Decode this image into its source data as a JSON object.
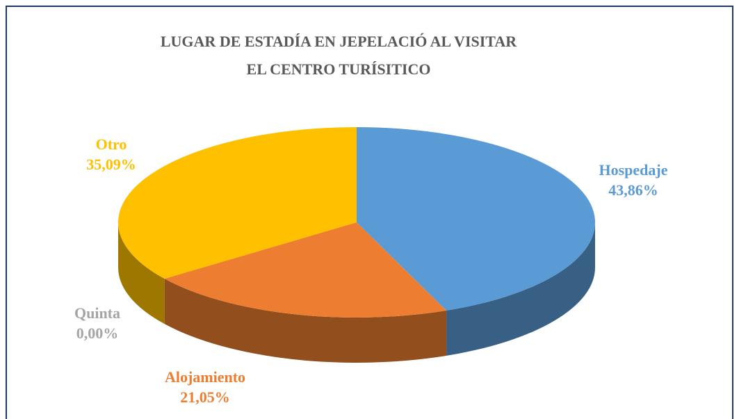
{
  "chart_data": {
    "type": "pie",
    "title": "LUGAR DE ESTADÍA EN JEPELACIÓ AL VISITAR EL CENTRO TURÍSITICO",
    "categories": [
      "Hospedaje",
      "Alojamiento",
      "Quinta",
      "Otro"
    ],
    "values": [
      43.86,
      21.05,
      0.0,
      35.09
    ],
    "value_labels": [
      "43,86%",
      "21,05%",
      "0,00%",
      "35,09%"
    ],
    "colors": [
      "#5b9bd5",
      "#ed7d31",
      "#a5a5a5",
      "#ffc000"
    ],
    "style": "3d"
  }
}
